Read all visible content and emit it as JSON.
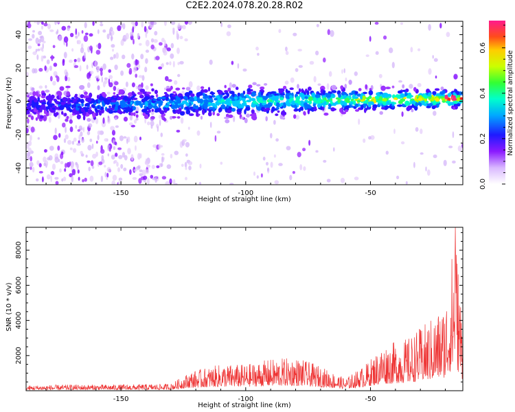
{
  "title": "C2E2.2024.078.20.28.R02",
  "chart_data": [
    {
      "type": "heatmap",
      "title": "C2E2.2024.078.20.28.R02",
      "xlabel": "Height of straight line (km)",
      "ylabel": "Frequency (Hz)",
      "xlim": [
        -188,
        -13
      ],
      "ylim": [
        -50,
        48
      ],
      "x_ticks": [
        -150,
        -100,
        -50
      ],
      "y_ticks": [
        -40,
        -20,
        0,
        20,
        40
      ],
      "colorbar": {
        "label": "Normalized spectral amplitude",
        "range": [
          0.0,
          0.72
        ],
        "ticks": [
          0.0,
          0.2,
          0.4,
          0.6
        ],
        "colors": [
          "#e6d6f8",
          "#9b32ff",
          "#1a1aff",
          "#00d4ff",
          "#00ff7a",
          "#86ff00",
          "#ffe600",
          "#ff7a00",
          "#ff1a1a",
          "#ff1a8c"
        ]
      },
      "band_center_hz": [
        {
          "x": -188,
          "y": -2.5
        },
        {
          "x": -150,
          "y": -2
        },
        {
          "x": -100,
          "y": 0
        },
        {
          "x": -50,
          "y": 1
        },
        {
          "x": -13,
          "y": 1.5
        }
      ],
      "band_halfwidth_hz": [
        {
          "x": -188,
          "y": 7
        },
        {
          "x": -100,
          "y": 8
        },
        {
          "x": -50,
          "y": 6
        },
        {
          "x": -13,
          "y": 5
        }
      ],
      "grid": false
    },
    {
      "type": "line",
      "xlabel": "Height of straight line (km)",
      "ylabel": "SNR (10 * v/v)",
      "xlim": [
        -188,
        -13
      ],
      "ylim": [
        0,
        9300
      ],
      "x_ticks": [
        -150,
        -100,
        -50
      ],
      "y_ticks": [
        2000,
        4000,
        6000,
        8000
      ],
      "series": [
        {
          "color": "#ee3333",
          "envelope": [
            {
              "x": -188,
              "y": 300
            },
            {
              "x": -170,
              "y": 350
            },
            {
              "x": -150,
              "y": 350
            },
            {
              "x": -130,
              "y": 400
            },
            {
              "x": -122,
              "y": 1100
            },
            {
              "x": -110,
              "y": 1500
            },
            {
              "x": -100,
              "y": 1500
            },
            {
              "x": -90,
              "y": 1800
            },
            {
              "x": -80,
              "y": 1900
            },
            {
              "x": -70,
              "y": 1400
            },
            {
              "x": -60,
              "y": 700
            },
            {
              "x": -52,
              "y": 1500
            },
            {
              "x": -45,
              "y": 2600
            },
            {
              "x": -35,
              "y": 3000
            },
            {
              "x": -25,
              "y": 4200
            },
            {
              "x": -20,
              "y": 5000
            },
            {
              "x": -16,
              "y": 9300
            },
            {
              "x": -13,
              "y": 4000
            }
          ],
          "peak": {
            "x": -16,
            "y": 9300
          }
        }
      ],
      "grid": false
    }
  ]
}
